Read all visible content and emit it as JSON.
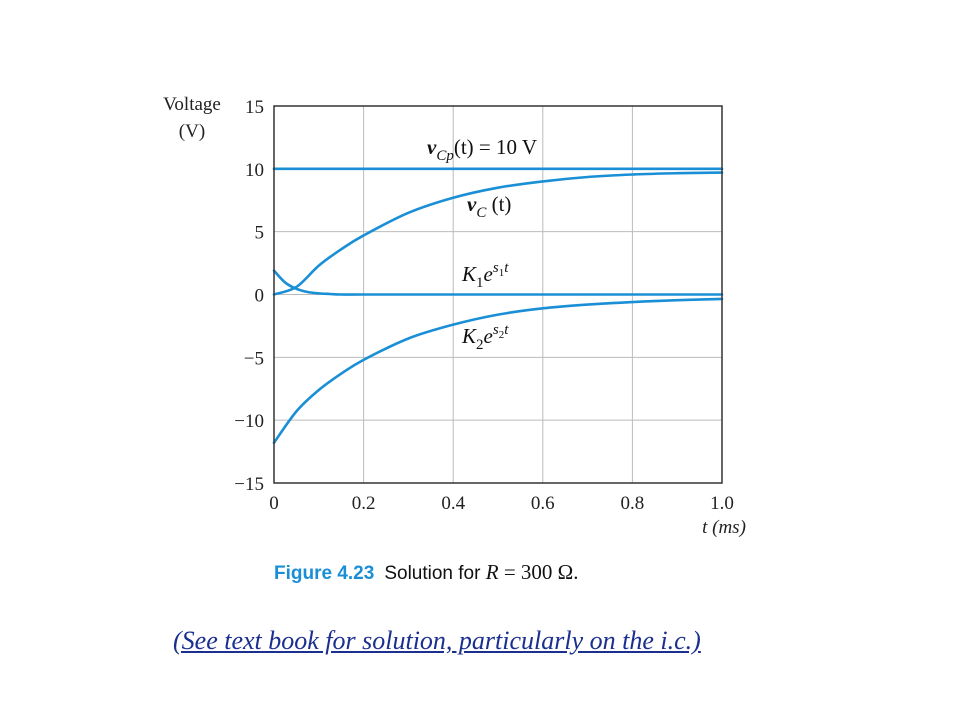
{
  "chart_data": {
    "type": "line",
    "ylabel_line1": "Voltage",
    "ylabel_line2": "(V)",
    "xlabel": "t (ms)",
    "xlim": [
      0,
      1.0
    ],
    "ylim": [
      -15,
      15
    ],
    "x_ticks": [
      "0",
      "0.2",
      "0.4",
      "0.6",
      "0.8",
      "1.0"
    ],
    "y_ticks": [
      "15",
      "10",
      "5",
      "0",
      "−5",
      "−10",
      "−15"
    ],
    "grid": true,
    "line_color": "#1a8fd6",
    "series": [
      {
        "name": "v_Cp(t) = 10 V",
        "x": [
          0,
          0.2,
          0.4,
          0.6,
          0.8,
          1.0
        ],
        "y": [
          10,
          10,
          10,
          10,
          10,
          10
        ]
      },
      {
        "name": "v_C(t)",
        "x": [
          0,
          0.05,
          0.1,
          0.15,
          0.2,
          0.3,
          0.4,
          0.5,
          0.6,
          0.7,
          0.8,
          0.9,
          1.0
        ],
        "y": [
          0,
          0.6,
          2.3,
          3.6,
          4.7,
          6.5,
          7.7,
          8.5,
          9.0,
          9.35,
          9.55,
          9.65,
          9.7
        ]
      },
      {
        "name": "K1 e^(s1 t)",
        "x": [
          0,
          0.025,
          0.05,
          0.075,
          0.1,
          0.125,
          0.15,
          0.2,
          0.4,
          0.6,
          0.8,
          1.0
        ],
        "y": [
          1.9,
          0.95,
          0.45,
          0.2,
          0.09,
          0.04,
          0.0,
          0.0,
          0.0,
          0.0,
          0.0,
          0.0
        ]
      },
      {
        "name": "K2 e^(s2 t)",
        "x": [
          0,
          0.05,
          0.1,
          0.15,
          0.2,
          0.3,
          0.4,
          0.5,
          0.6,
          0.7,
          0.8,
          0.9,
          1.0
        ],
        "y": [
          -11.8,
          -9.3,
          -7.6,
          -6.3,
          -5.2,
          -3.5,
          -2.4,
          -1.6,
          -1.1,
          -0.8,
          -0.6,
          -0.45,
          -0.35
        ]
      }
    ],
    "annotations": {
      "vcp": {
        "main": "v",
        "sub": "Cp",
        "rest": "(t) = 10 V"
      },
      "vc": {
        "main": "v",
        "sub": "C",
        "rest": " (t)"
      },
      "k1": {
        "main": "K",
        "sub": "1",
        "e": "e",
        "exp": "s",
        "exp_sub": "1",
        "exp_t": "t"
      },
      "k2": {
        "main": "K",
        "sub": "2",
        "e": "e",
        "exp": "s",
        "exp_sub": "2",
        "exp_t": "t"
      }
    }
  },
  "caption": {
    "figure_number": "Figure 4.23",
    "text": "Solution for ",
    "math_r": "R",
    "math_rest": " = 300 Ω."
  },
  "footnote": "(See text book for solution, particularly on the i.c.)"
}
